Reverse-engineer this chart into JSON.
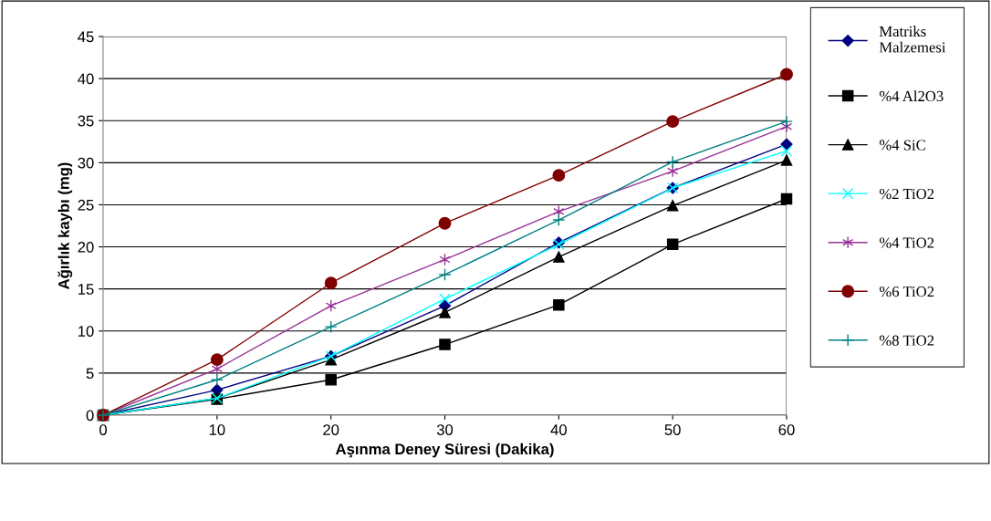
{
  "chart_data": {
    "type": "line",
    "xlabel": "Aşınma Deney Süresi (Dakika)",
    "ylabel": "Ağırlık kaybı (mg)",
    "x": [
      0,
      10,
      20,
      30,
      40,
      50,
      60
    ],
    "series": [
      {
        "name": "Matriks Malzemesi",
        "color": "#000080",
        "marker": "diamond",
        "values": [
          0,
          3.0,
          7.0,
          13.0,
          20.5,
          27.0,
          32.2
        ]
      },
      {
        "name": "%4 Al2O3",
        "color": "#000000",
        "marker": "square",
        "values": [
          0,
          1.9,
          4.2,
          8.4,
          13.1,
          20.3,
          25.7
        ]
      },
      {
        "name": "%4 SiC",
        "color": "#000000",
        "marker": "triangle",
        "values": [
          0,
          2.0,
          6.6,
          12.2,
          18.8,
          24.9,
          30.3
        ]
      },
      {
        "name": "%2 TiO2",
        "color": "#00ffff",
        "marker": "x",
        "values": [
          0,
          2.0,
          7.0,
          13.8,
          20.3,
          27.0,
          31.4
        ]
      },
      {
        "name": "%4 TiO2",
        "color": "#993399",
        "marker": "cross",
        "values": [
          0,
          5.5,
          13.0,
          18.5,
          24.2,
          29.0,
          34.3
        ]
      },
      {
        "name": "%6 TiO2",
        "color": "#800000",
        "marker": "circle",
        "values": [
          0,
          6.6,
          15.7,
          22.8,
          28.5,
          34.9,
          40.5
        ]
      },
      {
        "name": "%8 TiO2",
        "color": "#008080",
        "marker": "plus",
        "values": [
          0,
          4.2,
          10.5,
          16.7,
          23.2,
          30.1,
          34.9
        ]
      }
    ],
    "xlim": [
      0,
      60
    ],
    "xticks": [
      0,
      10,
      20,
      30,
      40,
      50,
      60
    ],
    "ylim": [
      0,
      45
    ],
    "yticks": [
      0,
      5,
      10,
      15,
      20,
      25,
      30,
      35,
      40,
      45
    ],
    "grid": "y",
    "legend": "right"
  }
}
